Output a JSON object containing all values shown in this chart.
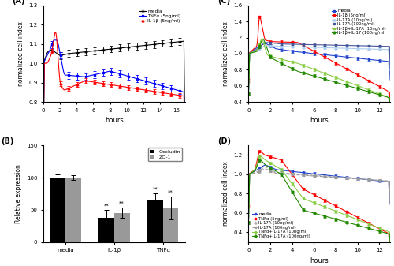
{
  "panel_A": {
    "xlabel": "hours",
    "ylabel": "normalized cell index",
    "xlim": [
      0,
      17
    ],
    "ylim": [
      0.8,
      1.3
    ],
    "yticks": [
      0.8,
      0.9,
      1.0,
      1.1,
      1.2,
      1.3
    ],
    "xticks": [
      0,
      2,
      4,
      6,
      8,
      10,
      12,
      14,
      16
    ]
  },
  "panel_B": {
    "ylabel": "Relative expression",
    "ylim": [
      0,
      150
    ],
    "yticks": [
      0,
      50,
      100,
      150
    ],
    "categories": [
      "media",
      "IL-1β",
      "TNFα"
    ],
    "occludin": [
      100,
      38,
      65
    ],
    "occludin_err": [
      5,
      12,
      10
    ],
    "zo1": [
      100,
      45,
      53
    ],
    "zo1_err": [
      4,
      8,
      18
    ],
    "bar_width": 0.32
  },
  "panel_C": {
    "xlabel": "hours",
    "ylabel": "normalized cell index",
    "xlim": [
      0,
      13
    ],
    "ylim": [
      0.4,
      1.6
    ],
    "yticks": [
      0.4,
      0.6,
      0.8,
      1.0,
      1.2,
      1.4,
      1.6
    ],
    "xticks": [
      0,
      2,
      4,
      6,
      8,
      10,
      12
    ]
  },
  "panel_D": {
    "xlabel": "hours",
    "ylabel": "normalized cell index",
    "xlim": [
      0,
      13
    ],
    "ylim": [
      0.3,
      1.3
    ],
    "yticks": [
      0.4,
      0.6,
      0.8,
      1.0,
      1.2
    ],
    "xticks": [
      0,
      2,
      4,
      6,
      8,
      10,
      12
    ]
  }
}
